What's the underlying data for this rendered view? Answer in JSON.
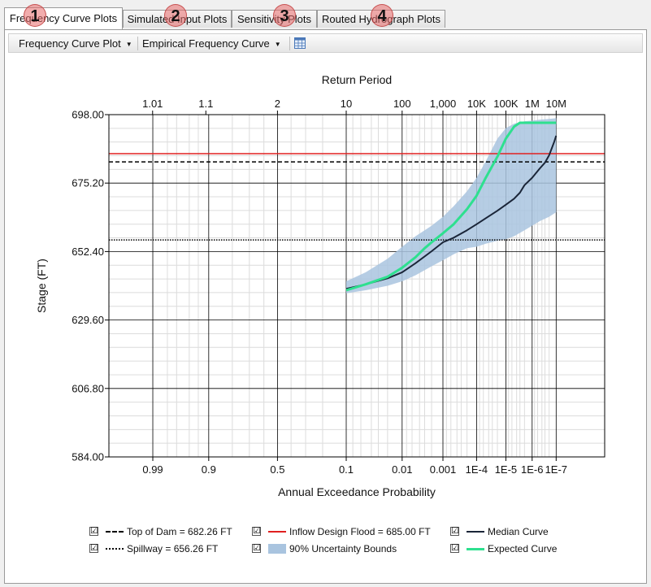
{
  "tabs": [
    {
      "label": "Frequency Curve Plots",
      "badge": "1",
      "active": true
    },
    {
      "label": "Simulated Input Plots",
      "badge": "2",
      "active": false
    },
    {
      "label": "Sensitivity Plots",
      "badge": "3",
      "active": false
    },
    {
      "label": "Routed Hydrograph Plots",
      "badge": "4",
      "active": false
    }
  ],
  "toolbar": {
    "plot_type": "Frequency Curve Plot",
    "curve_type": "Empirical Frequency Curve",
    "table_icon": "table-icon"
  },
  "legend": {
    "check_mark": "☑",
    "items": [
      {
        "label": "Top of Dam = 682.26 FT",
        "style": "dashed",
        "color": "#000000"
      },
      {
        "label": "Inflow Design Flood = 685.00 FT",
        "style": "solid",
        "color": "#e02020"
      },
      {
        "label": "Median Curve",
        "style": "solid",
        "color": "#1a2538"
      },
      {
        "label": "Spillway = 656.26 FT",
        "style": "dotted",
        "color": "#000000"
      },
      {
        "label": "90% Uncertainty Bounds",
        "style": "fill",
        "color": "#a9c4df"
      },
      {
        "label": "Expected Curve",
        "style": "solid",
        "color": "#2ee08f"
      }
    ]
  },
  "chart_data": {
    "type": "line",
    "x_scale": "normal-probability",
    "title": "",
    "top_axis_label": "Return Period",
    "top_ticks": [
      {
        "p": 0.990099,
        "label": "1.01"
      },
      {
        "p": 0.909091,
        "label": "1.1"
      },
      {
        "p": 0.5,
        "label": "2"
      },
      {
        "p": 0.1,
        "label": "10"
      },
      {
        "p": 0.01,
        "label": "100"
      },
      {
        "p": 0.001,
        "label": "1,000"
      },
      {
        "p": 0.0001,
        "label": "10K"
      },
      {
        "p": 1e-05,
        "label": "100K"
      },
      {
        "p": 1e-06,
        "label": "1M"
      },
      {
        "p": 1e-07,
        "label": "10M"
      }
    ],
    "xlabel": "Annual Exceedance Probability",
    "bottom_ticks": [
      {
        "p": 0.99,
        "label": "0.99"
      },
      {
        "p": 0.9,
        "label": "0.9"
      },
      {
        "p": 0.5,
        "label": "0.5"
      },
      {
        "p": 0.1,
        "label": "0.1"
      },
      {
        "p": 0.01,
        "label": "0.01"
      },
      {
        "p": 0.001,
        "label": "0.001"
      },
      {
        "p": 0.0001,
        "label": "1E-4"
      },
      {
        "p": 1e-05,
        "label": "1E-5"
      },
      {
        "p": 1e-06,
        "label": "1E-6"
      },
      {
        "p": 1e-07,
        "label": "1E-7"
      }
    ],
    "minor_grid_p": [
      0.98,
      0.97,
      0.95,
      0.93,
      0.8,
      0.7,
      0.6,
      0.4,
      0.3,
      0.2,
      0.08,
      0.06,
      0.04,
      0.03,
      0.02,
      0.008,
      0.006,
      0.004,
      0.003,
      0.002,
      0.0008,
      0.0006,
      0.0004,
      0.0003,
      0.0002,
      8e-05,
      6e-05,
      4e-05,
      3e-05,
      2e-05,
      8e-06,
      6e-06,
      4e-06,
      3e-06,
      2e-06,
      8e-07,
      6e-07,
      4e-07,
      3e-07,
      2e-07
    ],
    "ylabel": "Stage (FT)",
    "ylim": [
      584.0,
      698.0
    ],
    "yticks": [
      584.0,
      606.8,
      629.6,
      652.4,
      675.2,
      698.0
    ],
    "ytick_labels": [
      "584.00",
      "606.80",
      "629.60",
      "652.40",
      "675.20",
      "698.00"
    ],
    "grid": true,
    "legend_position": "bottom",
    "reference_lines": [
      {
        "name": "Top of Dam",
        "y": 682.26,
        "color": "#000000",
        "style": "dashed"
      },
      {
        "name": "Inflow Design Flood",
        "y": 685.0,
        "color": "#e02020",
        "style": "solid"
      },
      {
        "name": "Spillway",
        "y": 656.26,
        "color": "#000000",
        "style": "dotted"
      }
    ],
    "uncertainty_bounds": {
      "name": "90% Uncertainty Bounds",
      "color": "#a9c4df",
      "upper": [
        [
          0.1,
          642.5
        ],
        [
          0.05,
          645.5
        ],
        [
          0.02,
          650.0
        ],
        [
          0.01,
          654.0
        ],
        [
          0.005,
          657.5
        ],
        [
          0.002,
          661.0
        ],
        [
          0.001,
          664.0
        ],
        [
          0.0005,
          667.5
        ],
        [
          0.0002,
          672.5
        ],
        [
          0.0001,
          677.0
        ],
        [
          5e-05,
          682.5
        ],
        [
          2e-05,
          690.0
        ],
        [
          1e-05,
          693.5
        ],
        [
          5e-06,
          695.0
        ],
        [
          2e-06,
          695.8
        ],
        [
          1e-06,
          696.0
        ],
        [
          5e-07,
          696.3
        ],
        [
          2e-07,
          696.6
        ],
        [
          1e-07,
          696.8
        ]
      ],
      "lower": [
        [
          0.1,
          638.5
        ],
        [
          0.05,
          639.5
        ],
        [
          0.02,
          641.0
        ],
        [
          0.01,
          642.5
        ],
        [
          0.005,
          644.5
        ],
        [
          0.002,
          647.5
        ],
        [
          0.001,
          649.5
        ],
        [
          0.0005,
          651.5
        ],
        [
          0.0002,
          653.5
        ],
        [
          0.0001,
          654.0
        ],
        [
          5e-05,
          655.0
        ],
        [
          2e-05,
          656.0
        ],
        [
          1e-05,
          656.5
        ],
        [
          5e-06,
          657.5
        ],
        [
          2e-06,
          659.5
        ],
        [
          1e-06,
          661.0
        ],
        [
          5e-07,
          662.5
        ],
        [
          2e-07,
          664.0
        ],
        [
          1e-07,
          665.5
        ]
      ]
    },
    "series": [
      {
        "name": "Median Curve",
        "color": "#1a2538",
        "points": [
          [
            0.1,
            640.0
          ],
          [
            0.05,
            641.5
          ],
          [
            0.02,
            643.5
          ],
          [
            0.01,
            645.5
          ],
          [
            0.005,
            648.5
          ],
          [
            0.002,
            652.5
          ],
          [
            0.001,
            655.5
          ],
          [
            0.0005,
            657.0
          ],
          [
            0.0002,
            659.5
          ],
          [
            0.0001,
            661.5
          ],
          [
            5e-05,
            663.5
          ],
          [
            2e-05,
            666.0
          ],
          [
            1e-05,
            668.0
          ],
          [
            5e-06,
            670.0
          ],
          [
            3e-06,
            672.0
          ],
          [
            2e-06,
            674.5
          ],
          [
            1e-06,
            677.0
          ],
          [
            5e-07,
            680.0
          ],
          [
            3e-07,
            682.0
          ],
          [
            2e-07,
            684.5
          ],
          [
            1.2e-07,
            689.0
          ],
          [
            1e-07,
            691.0
          ]
        ]
      },
      {
        "name": "Expected Curve",
        "color": "#2ee08f",
        "points": [
          [
            0.1,
            639.5
          ],
          [
            0.05,
            641.5
          ],
          [
            0.02,
            644.0
          ],
          [
            0.01,
            647.0
          ],
          [
            0.005,
            650.5
          ],
          [
            0.003,
            653.5
          ],
          [
            0.002,
            655.5
          ],
          [
            0.001,
            658.5
          ],
          [
            0.0005,
            661.5
          ],
          [
            0.0002,
            666.5
          ],
          [
            0.0001,
            671.0
          ],
          [
            5e-05,
            677.0
          ],
          [
            2e-05,
            684.0
          ],
          [
            1e-05,
            690.0
          ],
          [
            5e-06,
            694.0
          ],
          [
            3e-06,
            695.3
          ],
          [
            1e-06,
            695.3
          ],
          [
            1e-07,
            695.3
          ]
        ]
      }
    ]
  }
}
